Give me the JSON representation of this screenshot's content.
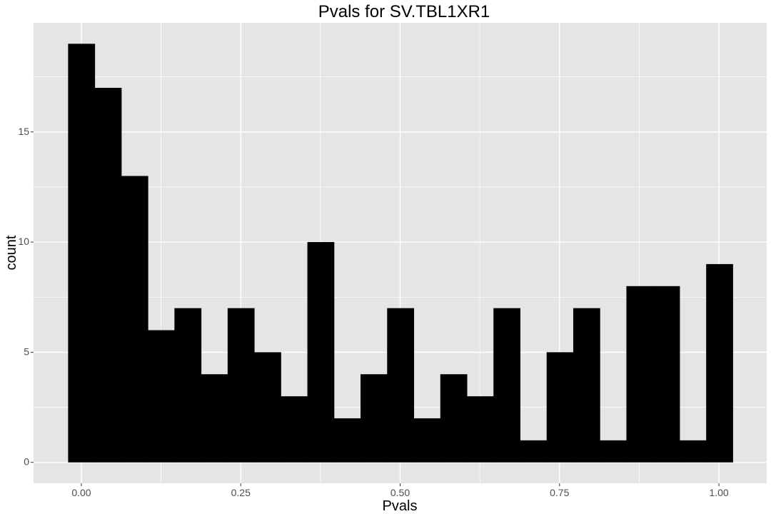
{
  "chart_data": {
    "type": "bar",
    "title": "Pvals for SV.TBL1XR1",
    "xlabel": "Pvals",
    "ylabel": "count",
    "x_ticks": [
      "0.00",
      "0.25",
      "0.50",
      "0.75",
      "1.00"
    ],
    "x_tick_values": [
      0,
      0.25,
      0.5,
      0.75,
      1.0
    ],
    "y_ticks": [
      "0",
      "5",
      "10",
      "15"
    ],
    "y_tick_values": [
      0,
      5,
      10,
      15
    ],
    "xlim": [
      -0.075,
      1.075
    ],
    "ylim": [
      -0.95,
      19.95
    ],
    "bin_width": 0.0417,
    "bin_start": -0.0208,
    "values": [
      19,
      17,
      13,
      6,
      7,
      4,
      7,
      5,
      3,
      10,
      2,
      4,
      7,
      2,
      4,
      3,
      7,
      1,
      5,
      7,
      1,
      8,
      8,
      1,
      9
    ],
    "grid": true,
    "panel_color": "#e5e5e5",
    "grid_color": "#ffffff",
    "bar_color": "#000000"
  }
}
